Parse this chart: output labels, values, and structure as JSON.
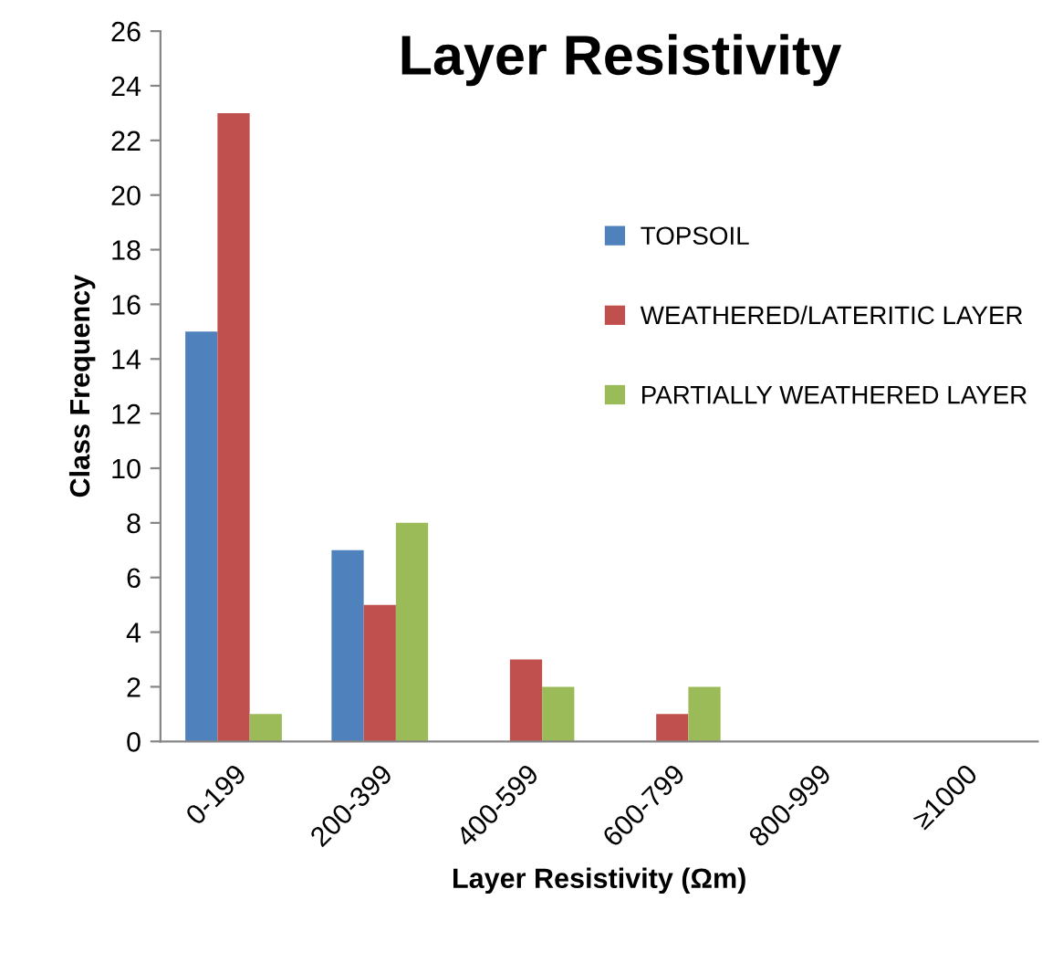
{
  "chart_data": {
    "type": "bar",
    "title": "Layer Resistivity",
    "xlabel": "Layer Resistivity (Ωm)",
    "ylabel": "Class Frequency",
    "categories": [
      "0-199",
      "200-399",
      "400-599",
      "600-799",
      "800-999",
      "≥1000"
    ],
    "series": [
      {
        "name": "TOPSOIL",
        "color": "#4f81bd",
        "values": [
          15,
          7,
          0,
          0,
          0,
          0
        ]
      },
      {
        "name": "WEATHERED/LATERITIC LAYER",
        "color": "#c0504d",
        "values": [
          23,
          5,
          3,
          1,
          0,
          0
        ]
      },
      {
        "name": "PARTIALLY WEATHERED LAYER",
        "color": "#9bbb59",
        "values": [
          1,
          8,
          2,
          2,
          0,
          0
        ]
      }
    ],
    "ylim": [
      0,
      26
    ],
    "yticks": [
      0,
      2,
      4,
      6,
      8,
      10,
      12,
      14,
      16,
      18,
      20,
      22,
      24,
      26
    ],
    "grid": false,
    "legend": "top right"
  }
}
